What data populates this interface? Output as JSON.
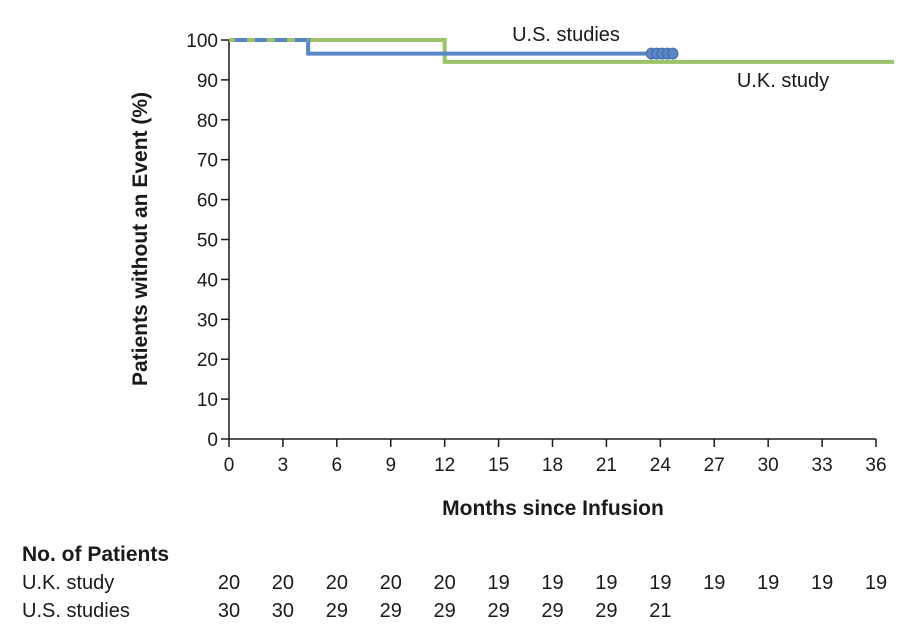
{
  "chart_data": {
    "type": "line",
    "subtype": "kaplan-meier-step",
    "xlabel": "Months since Infusion",
    "ylabel": "Patients without an Event (%)",
    "xlim": [
      0,
      36
    ],
    "ylim": [
      0,
      100
    ],
    "x_ticks": [
      0,
      3,
      6,
      9,
      12,
      15,
      18,
      21,
      24,
      27,
      30,
      33,
      36
    ],
    "y_ticks": [
      0,
      10,
      20,
      30,
      40,
      50,
      60,
      70,
      80,
      90,
      100
    ],
    "grid": false,
    "series": [
      {
        "name": "U.K. study",
        "label": "U.K. study",
        "color": "#9bc36b",
        "steps": [
          [
            0,
            100
          ],
          [
            12,
            100
          ],
          [
            12,
            94.5
          ],
          [
            37,
            94.5
          ]
        ],
        "censor_x": []
      },
      {
        "name": "U.S. studies",
        "label": "U.S. studies",
        "color": "#5b86c5",
        "steps": [
          [
            0,
            100
          ],
          [
            4.4,
            100
          ],
          [
            4.4,
            96.6
          ],
          [
            24.8,
            96.6
          ]
        ],
        "censor_x": [
          23.5,
          23.8,
          24.1,
          24.4,
          24.7
        ]
      }
    ]
  },
  "risk_table": {
    "title": "No. of Patients",
    "rows": [
      {
        "label": "U.K. study",
        "values": [
          "20",
          "20",
          "20",
          "20",
          "20",
          "19",
          "19",
          "19",
          "19",
          "19",
          "19",
          "19",
          "19"
        ]
      },
      {
        "label": "U.S. studies",
        "values": [
          "30",
          "30",
          "29",
          "29",
          "29",
          "29",
          "29",
          "29",
          "21"
        ]
      }
    ]
  }
}
